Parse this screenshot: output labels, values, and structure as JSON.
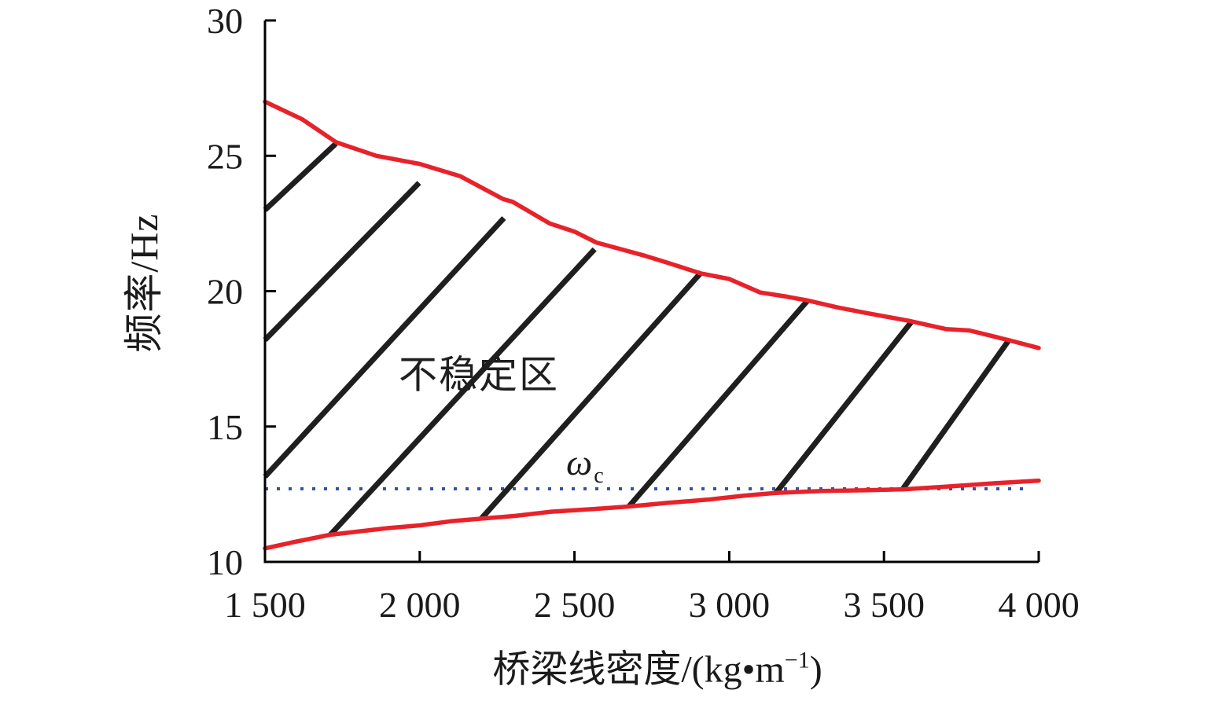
{
  "chart_data": {
    "type": "line",
    "title": "",
    "xlabel": "桥梁线密度/(kg•m⁻¹)",
    "xlabel_parts": {
      "main": "桥梁线密度/(kg•m",
      "sup": "−1",
      "end": ")"
    },
    "ylabel": "频率/Hz",
    "xlim": [
      1500,
      4000
    ],
    "ylim": [
      10,
      30
    ],
    "x_ticks": {
      "values": [
        1500,
        2000,
        2500,
        3000,
        3500,
        4000
      ],
      "labels": [
        "1 500",
        "2 000",
        "2 500",
        "3 000",
        "3 500",
        "4 000"
      ]
    },
    "y_ticks": {
      "values": [
        10,
        15,
        20,
        25,
        30
      ],
      "labels": [
        "10",
        "15",
        "20",
        "25",
        "30"
      ]
    },
    "grid": false,
    "legend": null,
    "region_label": "不稳定区",
    "series": [
      {
        "name": "unstable-region-upper-boundary",
        "color": "#e8222a",
        "points": [
          [
            1500,
            27.0
          ],
          [
            1620,
            26.35
          ],
          [
            1730,
            25.5
          ],
          [
            1860,
            25.0
          ],
          [
            2000,
            24.7
          ],
          [
            2130,
            24.25
          ],
          [
            2270,
            23.4
          ],
          [
            2300,
            23.3
          ],
          [
            2420,
            22.5
          ],
          [
            2500,
            22.2
          ],
          [
            2570,
            21.8
          ],
          [
            2730,
            21.3
          ],
          [
            2800,
            21.05
          ],
          [
            2910,
            20.65
          ],
          [
            3000,
            20.45
          ],
          [
            3100,
            19.95
          ],
          [
            3185,
            19.8
          ],
          [
            3256,
            19.65
          ],
          [
            3350,
            19.4
          ],
          [
            3440,
            19.2
          ],
          [
            3583,
            18.9
          ],
          [
            3700,
            18.6
          ],
          [
            3776,
            18.55
          ],
          [
            3900,
            18.2
          ],
          [
            4000,
            17.9
          ]
        ]
      },
      {
        "name": "unstable-region-lower-boundary",
        "color": "#e8222a",
        "points": [
          [
            1500,
            10.5
          ],
          [
            1600,
            10.75
          ],
          [
            1710,
            11.0
          ],
          [
            1800,
            11.12
          ],
          [
            1900,
            11.25
          ],
          [
            2000,
            11.35
          ],
          [
            2100,
            11.5
          ],
          [
            2200,
            11.6
          ],
          [
            2310,
            11.7
          ],
          [
            2420,
            11.85
          ],
          [
            2560,
            11.95
          ],
          [
            2680,
            12.05
          ],
          [
            2800,
            12.18
          ],
          [
            2930,
            12.3
          ],
          [
            3050,
            12.45
          ],
          [
            3150,
            12.55
          ],
          [
            3300,
            12.62
          ],
          [
            3450,
            12.65
          ],
          [
            3560,
            12.68
          ],
          [
            3700,
            12.78
          ],
          [
            3850,
            12.9
          ],
          [
            4000,
            13.0
          ]
        ]
      }
    ],
    "hatch_lines": {
      "color": "#1f1f1f",
      "segments": [
        [
          [
            1500,
            23.0
          ],
          [
            1729,
            25.45
          ]
        ],
        [
          [
            1500,
            18.2
          ],
          [
            1998,
            24.0
          ]
        ],
        [
          [
            1500,
            13.15
          ],
          [
            2272,
            22.7
          ]
        ],
        [
          [
            1711,
            11.0
          ],
          [
            2565,
            21.55
          ]
        ],
        [
          [
            2199,
            11.6
          ],
          [
            2910,
            20.7
          ]
        ],
        [
          [
            2676,
            12.05
          ],
          [
            3253,
            19.65
          ]
        ],
        [
          [
            3151,
            12.55
          ],
          [
            3591,
            18.9
          ]
        ],
        [
          [
            3560,
            12.68
          ],
          [
            3901,
            18.15
          ]
        ]
      ]
    },
    "reference_line": {
      "symbol": "ω",
      "subscript": "c",
      "value": 12.7,
      "x_start": 1500,
      "x_end": 3970,
      "style": "dotted",
      "color": "#3553a4"
    },
    "axis_color": "#000000"
  }
}
